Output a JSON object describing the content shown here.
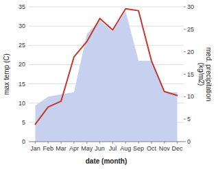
{
  "chart_data": {
    "type": "line",
    "categories": [
      "Jan",
      "Feb",
      "Mar",
      "Apr",
      "May",
      "Jun",
      "Jul",
      "Aug",
      "Sep",
      "Oct",
      "Nov",
      "Dec"
    ],
    "series": [
      {
        "type": "area",
        "axis": "y2",
        "color": "#c8d0f0",
        "values": [
          8.0,
          10.0,
          10.5,
          11.0,
          24.0,
          27.0,
          24.5,
          29.0,
          18.0,
          18.0,
          11.0,
          11.0
        ]
      },
      {
        "type": "line",
        "color": "#c0392b",
        "values": [
          4.5,
          9.0,
          10.5,
          22.0,
          26.0,
          32.0,
          29.0,
          34.5,
          34.0,
          21.0,
          13.0,
          12.0
        ]
      }
    ],
    "xlabel": "date (month)",
    "ylabel": "max temp (C)",
    "y2label": "med. precipitation\n(kg/m2)",
    "ylim": [
      0,
      35
    ],
    "yticks": [
      0,
      5,
      10,
      15,
      20,
      25,
      30,
      35
    ],
    "y2lim": [
      0,
      30
    ],
    "y2ticks": [
      0,
      5,
      10,
      15,
      20,
      25,
      30
    ],
    "grid": true
  }
}
